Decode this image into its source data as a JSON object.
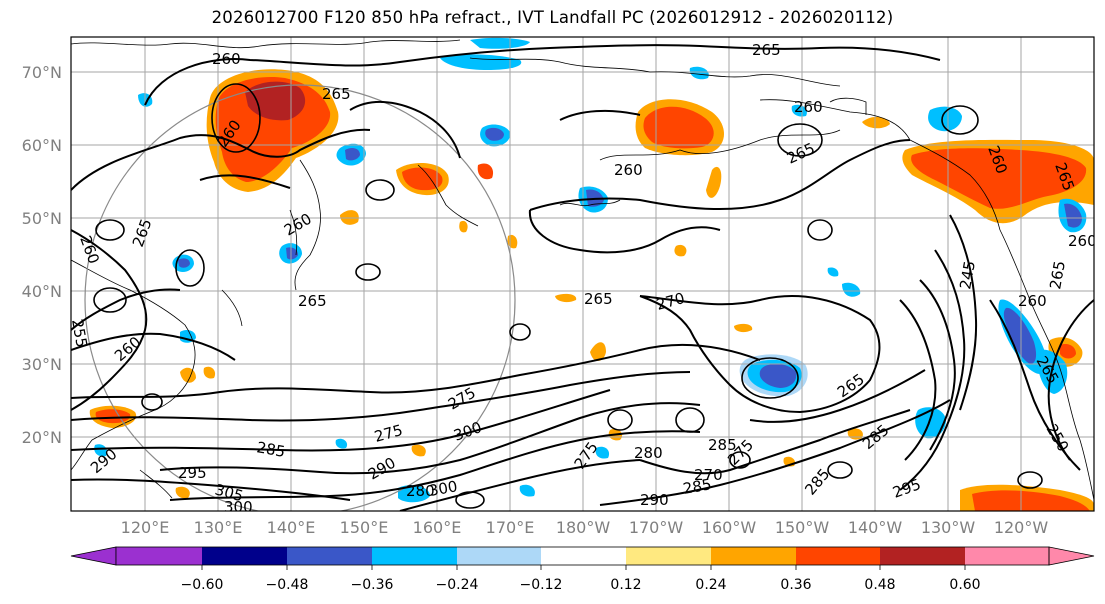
{
  "title": "2026012700 F120 850 hPa refract., IVT Landfall PC (2026012912 - 2026020112)",
  "lat_labels": [
    "70°N",
    "60°N",
    "50°N",
    "40°N",
    "30°N",
    "20°N"
  ],
  "lon_labels": [
    "120°E",
    "130°E",
    "140°E",
    "150°E",
    "160°E",
    "170°E",
    "180°W",
    "170°W",
    "160°W",
    "150°W",
    "140°W",
    "130°W",
    "120°W"
  ],
  "colorbar": {
    "colors": [
      "#9b30d0",
      "#00008b",
      "#3a57c8",
      "#00bfff",
      "#add8f7",
      "#ffffff",
      "#ffe980",
      "#ffa500",
      "#ff4500",
      "#b22222",
      "#ff88aa"
    ],
    "ticks": [
      "−0.60",
      "−0.48",
      "−0.36",
      "−0.24",
      "−0.12",
      "0.12",
      "0.24",
      "0.36",
      "0.48",
      "0.60"
    ]
  },
  "contour_labels": [
    "260",
    "265",
    "260",
    "265",
    "265",
    "260",
    "260",
    "265",
    "260",
    "260",
    "265",
    "260",
    "260",
    "255",
    "260",
    "265",
    "270",
    "275",
    "285",
    "265",
    "275",
    "300",
    "275",
    "285",
    "285",
    "270",
    "290",
    "280",
    "290",
    "305",
    "300",
    "295",
    "290",
    "300",
    "280",
    "285",
    "295",
    "285",
    "265",
    "275",
    "245",
    "260",
    "250",
    "265",
    "265"
  ]
}
